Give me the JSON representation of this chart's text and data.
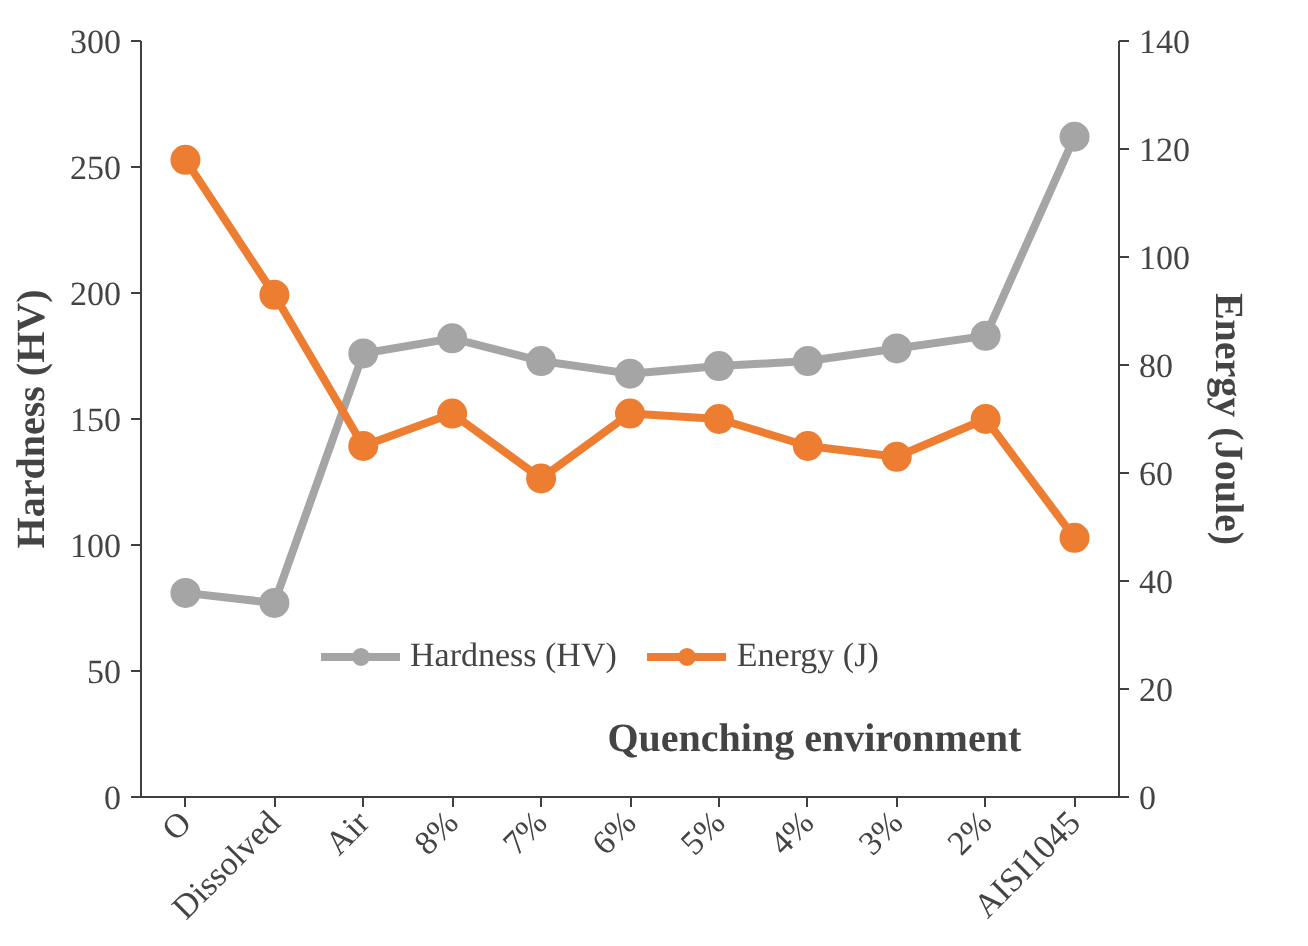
{
  "chart_data": {
    "type": "line",
    "xlabel": "Quenching environment",
    "ylabel": "Hardness (HV)",
    "y2label": "Energy (Joule)",
    "categories": [
      "O",
      "Dissolved",
      "Air",
      "8%",
      "7%",
      "6%",
      "5%",
      "4%",
      "3%",
      "2%",
      "AISI1045"
    ],
    "series": [
      {
        "name": "Hardness (HV)",
        "color": "#a5a5a5",
        "values": [
          81,
          77,
          176,
          182,
          173,
          168,
          171,
          173,
          178,
          183,
          262
        ]
      },
      {
        "name": "Energy (J)",
        "color": "#ed7d31",
        "axis": "y2",
        "values": [
          118,
          93,
          65,
          71,
          59,
          71,
          70,
          65,
          63,
          70,
          48
        ]
      }
    ],
    "ylim": [
      0,
      300
    ],
    "yticks": [
      0,
      50,
      100,
      150,
      200,
      250,
      300
    ],
    "y2lim": [
      0,
      140
    ],
    "y2ticks": [
      0,
      20,
      40,
      60,
      80,
      100,
      120,
      140
    ],
    "grid": false,
    "legend": "bottom",
    "marker": "circle",
    "line_style": "solid"
  }
}
